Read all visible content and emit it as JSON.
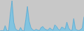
{
  "chart_data": {
    "type": "area",
    "color": "#82c4e0",
    "series": [
      {
        "color": "#5badd4",
        "values": [
          1.0,
          1.1,
          1.0,
          2.2,
          1.1,
          1.0,
          4.8,
          7.8,
          3.0,
          1.5,
          1.2,
          1.0,
          1.8,
          1.1,
          1.0,
          3.5,
          6.5,
          3.2,
          1.8,
          1.3,
          1.1,
          1.4,
          1.2,
          1.1,
          1.8,
          2.0,
          1.5,
          1.3,
          1.2,
          1.7,
          1.4,
          1.2,
          2.4,
          2.0,
          1.4,
          1.2,
          1.9,
          1.7,
          1.4,
          3.0,
          1.7,
          1.2,
          1.1,
          3.8,
          1.5,
          1.2,
          1.1,
          1.3,
          1.7,
          4.2
        ]
      }
    ],
    "xlim": [
      0,
      49
    ],
    "ylim": [
      1.0,
      7.956
    ],
    "tick_labels": false
  }
}
